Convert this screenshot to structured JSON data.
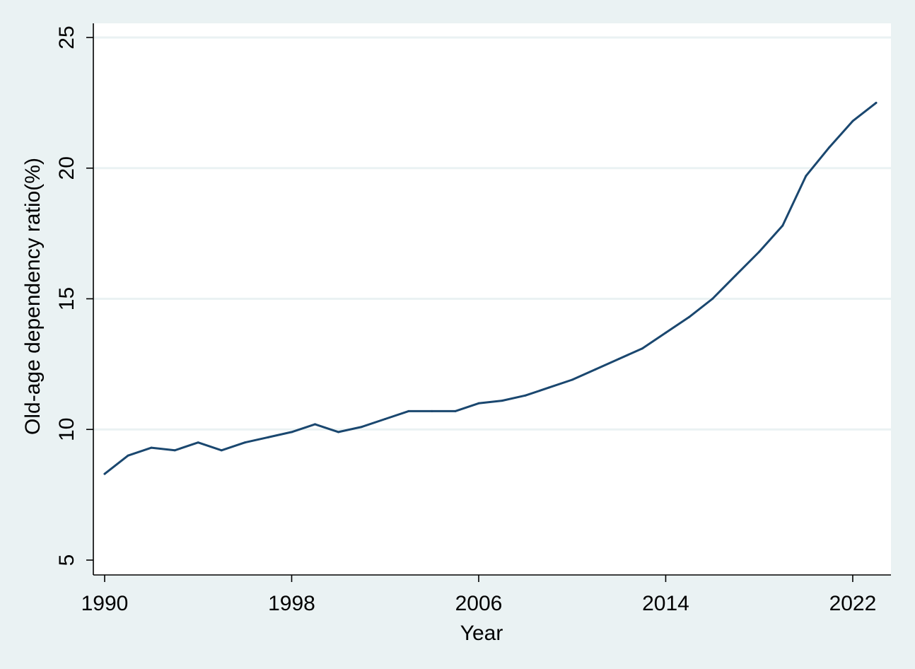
{
  "chart_data": {
    "type": "line",
    "title": "",
    "xlabel": "Year",
    "ylabel": "Old-age dependency ratio(%)",
    "xlim": [
      1990,
      2023
    ],
    "ylim": [
      5,
      25
    ],
    "x_ticks": [
      "1990",
      "1998",
      "2006",
      "2014",
      "2022"
    ],
    "y_ticks": [
      "5",
      "10",
      "15",
      "20",
      "25"
    ],
    "grid": "horizontal",
    "legend": "none",
    "colors": {
      "background": "#eaf2f3",
      "plot_background": "#ffffff",
      "line": "#1a476f",
      "grid": "#eaf2f3",
      "axis": "#000000"
    },
    "series": [
      {
        "x": [
          1990,
          1991,
          1992,
          1993,
          1994,
          1995,
          1996,
          1997,
          1998,
          1999,
          2000,
          2001,
          2002,
          2003,
          2004,
          2005,
          2006,
          2007,
          2008,
          2009,
          2010,
          2011,
          2012,
          2013,
          2014,
          2015,
          2016,
          2017,
          2018,
          2019,
          2020,
          2021,
          2022,
          2023
        ],
        "values": [
          8.3,
          9.0,
          9.3,
          9.2,
          9.5,
          9.2,
          9.5,
          9.7,
          9.9,
          10.2,
          9.9,
          10.1,
          10.4,
          10.7,
          10.7,
          10.7,
          11.0,
          11.1,
          11.3,
          11.6,
          11.9,
          12.3,
          12.7,
          13.1,
          13.7,
          14.3,
          15.0,
          15.9,
          16.8,
          17.8,
          19.7,
          20.8,
          21.8,
          22.5
        ]
      }
    ]
  }
}
